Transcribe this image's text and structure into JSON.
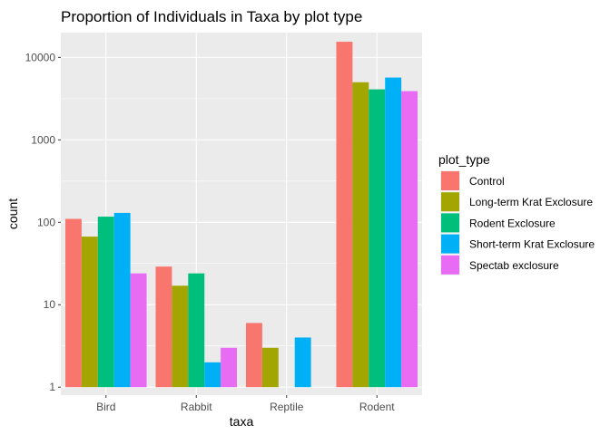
{
  "chart_data": {
    "type": "bar",
    "title": "Proportion of Individuals in Taxa by plot type",
    "xlabel": "taxa",
    "ylabel": "count",
    "yscale": "log10",
    "ylim": [
      0.8,
      20000
    ],
    "yticks": [
      1,
      10,
      100,
      1000,
      10000
    ],
    "ytick_labels": [
      "1",
      "10",
      "100",
      "1000",
      "10000"
    ],
    "categories": [
      "Bird",
      "Rabbit",
      "Reptile",
      "Rodent"
    ],
    "grid": true,
    "legend_title": "plot_type",
    "legend_position": "right",
    "series": [
      {
        "name": "Control",
        "color": "#F8766D",
        "values": [
          110,
          29,
          6,
          15500
        ]
      },
      {
        "name": "Long-term Krat Exclosure",
        "color": "#A3A500",
        "values": [
          67,
          17,
          3,
          5000
        ]
      },
      {
        "name": "Rodent Exclosure",
        "color": "#00BF7D",
        "values": [
          117,
          24,
          null,
          4100
        ]
      },
      {
        "name": "Short-term Krat Exclosure",
        "color": "#00B0F6",
        "values": [
          130,
          2,
          4,
          5700
        ]
      },
      {
        "name": "Spectab exclosure",
        "color": "#E76BF3",
        "values": [
          24,
          3,
          null,
          3900
        ]
      }
    ]
  }
}
